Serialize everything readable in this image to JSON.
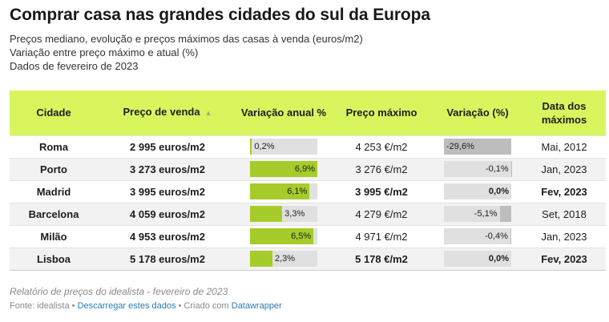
{
  "title": "Comprar casa nas grandes cidades do sul da Europa",
  "subtitle_lines": [
    "Preços mediano, evolução e preços máximos das casas à venda (euros/m2)",
    "Variação entre preço máximo e atual (%)",
    "Dados de fevereiro de 2023"
  ],
  "colors": {
    "header_bg": "#d9f55e",
    "bar_positive": "#a5cc2a",
    "bar_negative": "#bdbdbd",
    "bar_track": "#e0e0e0",
    "link": "#2c7ab6"
  },
  "chart_data": {
    "type": "table",
    "columns": [
      {
        "label": "Cidade",
        "icon": ""
      },
      {
        "label": "Preço de venda",
        "icon": "sort-up-arrow"
      },
      {
        "label": "Variação anual %",
        "icon": ""
      },
      {
        "label": "Preço máximo",
        "icon": ""
      },
      {
        "label": "Variação (%)",
        "icon": ""
      },
      {
        "label": "Data dos máximos",
        "icon": ""
      }
    ],
    "sort_indicator": "▲",
    "rows": [
      {
        "city": "Roma",
        "sale_price": "2 995 euros/m2",
        "annual_change": 0.2,
        "annual_change_label": "0,2%",
        "max_price": "4 253 €/m2",
        "var_from_max": -29.6,
        "var_from_max_label": "-29,6%",
        "max_date": "Mai, 2012",
        "at_max": false
      },
      {
        "city": "Porto",
        "sale_price": "3 273 euros/m2",
        "annual_change": 6.9,
        "annual_change_label": "6,9%",
        "max_price": "3 276 €/m2",
        "var_from_max": -0.1,
        "var_from_max_label": "-0,1%",
        "max_date": "Jan, 2023",
        "at_max": false
      },
      {
        "city": "Madrid",
        "sale_price": "3 995 euros/m2",
        "annual_change": 6.1,
        "annual_change_label": "6,1%",
        "max_price": "3 995 €/m2",
        "var_from_max": 0.0,
        "var_from_max_label": "0,0%",
        "max_date": "Fev, 2023",
        "at_max": true
      },
      {
        "city": "Barcelona",
        "sale_price": "4 059 euros/m2",
        "annual_change": 3.3,
        "annual_change_label": "3,3%",
        "max_price": "4 279 €/m2",
        "var_from_max": -5.1,
        "var_from_max_label": "-5,1%",
        "max_date": "Set, 2018",
        "at_max": false
      },
      {
        "city": "Milão",
        "sale_price": "4 953 euros/m2",
        "annual_change": 6.5,
        "annual_change_label": "6,5%",
        "max_price": "4 971 €/m2",
        "var_from_max": -0.4,
        "var_from_max_label": "-0,4%",
        "max_date": "Jan, 2023",
        "at_max": false
      },
      {
        "city": "Lisboa",
        "sale_price": "5 178 euros/m2",
        "annual_change": 2.3,
        "annual_change_label": "2,3%",
        "max_price": "5 178 €/m2",
        "var_from_max": 0.0,
        "var_from_max_label": "0,0%",
        "max_date": "Fev, 2023",
        "at_max": true
      }
    ],
    "annual_change_range": [
      0,
      6.9
    ],
    "var_from_max_range": [
      -29.6,
      0
    ]
  },
  "notes": "Relatório de preços do idealista - fevereiro de 2023",
  "footer": {
    "source": "Fonte: idealista",
    "sep1": " • ",
    "download_link": "Descarregar estes dados",
    "sep2": " • Criado com ",
    "tool_link": "Datawrapper"
  }
}
